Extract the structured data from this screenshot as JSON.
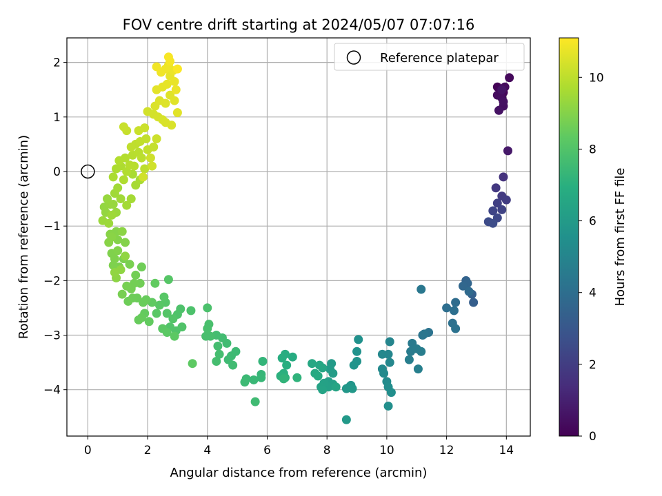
{
  "chart_data": {
    "type": "scatter",
    "title": "FOV centre drift starting at 2024/05/07 07:07:16",
    "xlabel": "Angular distance from reference (arcmin)",
    "ylabel": "Rotation from reference (arcmin)",
    "xlim": [
      -0.7,
      14.8
    ],
    "ylim": [
      -4.85,
      2.45
    ],
    "xticks": [
      0,
      2,
      4,
      6,
      8,
      10,
      12,
      14
    ],
    "yticks": [
      -4,
      -3,
      -2,
      -1,
      0,
      1,
      2
    ],
    "grid": true,
    "legend": {
      "placement": "top-right",
      "entries": [
        "Reference platepar"
      ]
    },
    "reference_point": {
      "x": 0,
      "y": 0
    },
    "colorbar": {
      "label": "Hours from first FF file",
      "min": 0,
      "max": 11.1,
      "ticks": [
        0,
        2,
        4,
        6,
        8,
        10
      ],
      "colormap": "viridis"
    },
    "series": [
      {
        "color_by": "hours",
        "points": [
          [
            13.7,
            1.55,
            0.1
          ],
          [
            13.9,
            1.45,
            0.15
          ],
          [
            13.8,
            1.5,
            0.2
          ],
          [
            14.1,
            1.72,
            0.25
          ],
          [
            13.95,
            1.55,
            0.3
          ],
          [
            13.7,
            1.4,
            0.35
          ],
          [
            13.85,
            1.35,
            0.4
          ],
          [
            13.9,
            1.2,
            0.45
          ],
          [
            13.9,
            1.28,
            0.5
          ],
          [
            13.75,
            1.12,
            0.55
          ],
          [
            13.85,
            1.5,
            0.6
          ],
          [
            14.05,
            0.38,
            0.75
          ],
          [
            13.9,
            -0.1,
            1.6
          ],
          [
            13.65,
            -0.3,
            1.8
          ],
          [
            13.85,
            -0.45,
            1.9
          ],
          [
            14.0,
            -0.52,
            2.0
          ],
          [
            13.7,
            -0.58,
            2.1
          ],
          [
            13.85,
            -0.7,
            2.2
          ],
          [
            13.55,
            -0.72,
            2.3
          ],
          [
            13.7,
            -0.85,
            2.4
          ],
          [
            13.4,
            -0.92,
            2.5
          ],
          [
            13.55,
            -0.95,
            2.6
          ],
          [
            12.9,
            -2.4,
            3.3
          ],
          [
            12.85,
            -2.25,
            3.4
          ],
          [
            12.65,
            -2.0,
            3.5
          ],
          [
            12.7,
            -2.05,
            3.6
          ],
          [
            12.55,
            -2.1,
            3.7
          ],
          [
            12.75,
            -2.2,
            3.8
          ],
          [
            12.3,
            -2.4,
            3.9
          ],
          [
            12.0,
            -2.5,
            4.0
          ],
          [
            12.25,
            -2.55,
            4.05
          ],
          [
            12.2,
            -2.78,
            4.1
          ],
          [
            12.3,
            -2.88,
            4.15
          ],
          [
            11.4,
            -2.95,
            4.2
          ],
          [
            11.2,
            -3.0,
            4.3
          ],
          [
            11.25,
            -2.98,
            4.35
          ],
          [
            11.15,
            -2.16,
            4.4
          ],
          [
            10.85,
            -3.15,
            4.5
          ],
          [
            10.8,
            -3.3,
            4.55
          ],
          [
            11.0,
            -3.25,
            4.6
          ],
          [
            11.15,
            -3.3,
            4.65
          ],
          [
            10.75,
            -3.45,
            4.7
          ],
          [
            11.05,
            -3.62,
            4.75
          ],
          [
            10.1,
            -3.12,
            5.0
          ],
          [
            10.05,
            -3.35,
            5.05
          ],
          [
            10.1,
            -3.5,
            5.1
          ],
          [
            9.85,
            -3.35,
            5.15
          ],
          [
            9.85,
            -3.62,
            5.2
          ],
          [
            9.9,
            -3.7,
            5.25
          ],
          [
            10.0,
            -3.85,
            5.3
          ],
          [
            10.05,
            -3.95,
            5.35
          ],
          [
            10.15,
            -4.05,
            5.4
          ],
          [
            10.05,
            -4.3,
            5.45
          ],
          [
            9.05,
            -3.08,
            5.55
          ],
          [
            9.0,
            -3.3,
            5.6
          ],
          [
            9.0,
            -3.48,
            5.65
          ],
          [
            8.9,
            -3.55,
            5.7
          ],
          [
            8.8,
            -3.92,
            5.75
          ],
          [
            8.75,
            -3.95,
            5.8
          ],
          [
            8.65,
            -3.98,
            5.85
          ],
          [
            8.85,
            -3.98,
            5.9
          ],
          [
            8.65,
            -4.55,
            5.95
          ],
          [
            8.15,
            -3.52,
            6.0
          ],
          [
            8.1,
            -3.62,
            6.05
          ],
          [
            8.2,
            -3.7,
            6.1
          ],
          [
            8.05,
            -3.85,
            6.15
          ],
          [
            8.2,
            -3.9,
            6.2
          ],
          [
            8.05,
            -3.95,
            6.25
          ],
          [
            7.9,
            -3.88,
            6.3
          ],
          [
            7.8,
            -3.95,
            6.35
          ],
          [
            7.85,
            -4.0,
            6.4
          ],
          [
            8.3,
            -3.95,
            6.45
          ],
          [
            7.85,
            -3.6,
            6.5
          ],
          [
            7.75,
            -3.55,
            6.55
          ],
          [
            7.5,
            -3.52,
            6.6
          ],
          [
            7.6,
            -3.7,
            6.65
          ],
          [
            7.7,
            -3.75,
            6.7
          ],
          [
            6.85,
            -3.4,
            6.8
          ],
          [
            6.6,
            -3.35,
            6.85
          ],
          [
            6.5,
            -3.42,
            6.9
          ],
          [
            6.65,
            -3.55,
            6.95
          ],
          [
            6.55,
            -3.7,
            7.0
          ],
          [
            6.45,
            -3.75,
            7.05
          ],
          [
            6.6,
            -3.78,
            7.1
          ],
          [
            7.0,
            -3.78,
            7.15
          ],
          [
            6.55,
            -3.8,
            7.2
          ],
          [
            5.85,
            -3.48,
            7.25
          ],
          [
            5.8,
            -3.72,
            7.3
          ],
          [
            5.8,
            -3.78,
            7.35
          ],
          [
            5.55,
            -3.82,
            7.4
          ],
          [
            5.3,
            -3.8,
            7.45
          ],
          [
            5.25,
            -3.86,
            7.5
          ],
          [
            5.6,
            -4.22,
            7.55
          ],
          [
            4.95,
            -3.3,
            7.5
          ],
          [
            4.8,
            -3.38,
            7.52
          ],
          [
            4.7,
            -3.45,
            7.55
          ],
          [
            4.85,
            -3.55,
            7.58
          ],
          [
            4.65,
            -3.15,
            7.6
          ],
          [
            4.5,
            -3.05,
            7.62
          ],
          [
            4.3,
            -3.0,
            7.65
          ],
          [
            4.35,
            -3.2,
            7.68
          ],
          [
            4.4,
            -3.35,
            7.7
          ],
          [
            4.3,
            -3.48,
            7.72
          ],
          [
            4.1,
            -3.02,
            7.75
          ],
          [
            3.95,
            -3.02,
            7.78
          ],
          [
            4.0,
            -2.88,
            7.8
          ],
          [
            4.05,
            -2.8,
            7.82
          ],
          [
            4.0,
            -2.5,
            7.85
          ],
          [
            3.45,
            -2.55,
            7.9
          ],
          [
            3.1,
            -2.52,
            7.92
          ],
          [
            3.0,
            -2.62,
            7.95
          ],
          [
            3.15,
            -2.85,
            7.98
          ],
          [
            2.95,
            -2.92,
            8.0
          ],
          [
            2.75,
            -2.85,
            8.02
          ],
          [
            2.85,
            -2.7,
            8.05
          ],
          [
            2.65,
            -2.6,
            8.08
          ],
          [
            2.6,
            -2.4,
            8.1
          ],
          [
            2.7,
            -1.98,
            8.12
          ],
          [
            2.55,
            -2.3,
            8.15
          ],
          [
            2.4,
            -2.45,
            8.18
          ],
          [
            2.3,
            -2.6,
            8.2
          ],
          [
            2.5,
            -2.88,
            8.22
          ],
          [
            2.65,
            -2.95,
            8.25
          ],
          [
            2.9,
            -3.02,
            8.28
          ],
          [
            3.5,
            -3.52,
            8.3
          ],
          [
            2.15,
            -2.4,
            8.35
          ],
          [
            2.25,
            -2.05,
            8.38
          ],
          [
            2.05,
            -2.75,
            8.4
          ],
          [
            1.9,
            -2.6,
            8.42
          ],
          [
            1.8,
            -2.68,
            8.45
          ],
          [
            1.7,
            -2.72,
            8.48
          ],
          [
            1.95,
            -2.35,
            8.5
          ],
          [
            1.85,
            -2.4,
            8.52
          ],
          [
            1.65,
            -2.32,
            8.55
          ],
          [
            1.5,
            -2.32,
            8.58
          ],
          [
            1.35,
            -2.38,
            8.6
          ],
          [
            1.8,
            -1.75,
            8.62
          ],
          [
            1.75,
            -2.05,
            8.65
          ],
          [
            1.6,
            -1.9,
            8.68
          ],
          [
            1.55,
            -2.05,
            8.7
          ],
          [
            1.45,
            -2.15,
            8.72
          ],
          [
            1.3,
            -2.1,
            8.75
          ],
          [
            1.15,
            -2.25,
            8.78
          ],
          [
            1.4,
            -1.7,
            8.8
          ],
          [
            1.2,
            -1.6,
            8.82
          ],
          [
            1.05,
            -1.75,
            8.85
          ],
          [
            0.85,
            -1.72,
            8.88
          ],
          [
            0.9,
            -1.6,
            8.9
          ],
          [
            0.8,
            -1.5,
            8.92
          ],
          [
            1.0,
            -1.45,
            8.95
          ],
          [
            1.25,
            -1.3,
            8.98
          ],
          [
            1.0,
            -1.25,
            9.0
          ],
          [
            0.95,
            -1.1,
            9.02
          ],
          [
            0.75,
            -1.15,
            9.05
          ],
          [
            0.7,
            -1.3,
            9.08
          ],
          [
            0.8,
            -1.2,
            9.1
          ],
          [
            1.15,
            -1.1,
            9.12
          ],
          [
            0.95,
            -1.95,
            9.15
          ],
          [
            1.1,
            -1.8,
            9.18
          ],
          [
            1.25,
            -1.55,
            9.2
          ],
          [
            0.9,
            -1.85,
            9.22
          ],
          [
            0.55,
            -0.65,
            9.25
          ],
          [
            0.6,
            -0.75,
            9.28
          ],
          [
            0.75,
            -0.6,
            9.3
          ],
          [
            0.65,
            -0.5,
            9.32
          ],
          [
            0.85,
            -0.6,
            9.35
          ],
          [
            0.95,
            -0.75,
            9.38
          ],
          [
            0.5,
            -0.9,
            9.4
          ],
          [
            0.7,
            -0.95,
            9.42
          ],
          [
            0.8,
            -0.8,
            9.45
          ],
          [
            0.9,
            -0.4,
            9.48
          ],
          [
            1.1,
            -0.5,
            9.5
          ],
          [
            1.0,
            -0.3,
            9.52
          ],
          [
            1.3,
            -0.62,
            9.55
          ],
          [
            1.45,
            -0.5,
            9.58
          ],
          [
            1.6,
            -0.25,
            9.6
          ],
          [
            1.75,
            -0.15,
            9.62
          ],
          [
            1.5,
            -0.05,
            9.65
          ],
          [
            0.85,
            -0.1,
            9.68
          ],
          [
            0.95,
            0.05,
            9.7
          ],
          [
            1.1,
            0.1,
            9.72
          ],
          [
            1.2,
            -0.15,
            9.75
          ],
          [
            1.3,
            0.0,
            9.78
          ],
          [
            1.05,
            0.2,
            9.8
          ],
          [
            1.25,
            0.25,
            9.82
          ],
          [
            1.4,
            0.12,
            9.85
          ],
          [
            1.5,
            0.3,
            9.88
          ],
          [
            1.55,
            0.1,
            9.9
          ],
          [
            1.7,
            0.35,
            9.92
          ],
          [
            1.8,
            0.25,
            9.95
          ],
          [
            1.9,
            0.05,
            9.98
          ],
          [
            1.6,
            0.5,
            10.0
          ],
          [
            1.45,
            0.45,
            10.02
          ],
          [
            1.75,
            0.55,
            10.05
          ],
          [
            1.95,
            0.6,
            10.08
          ],
          [
            2.0,
            0.4,
            10.1
          ],
          [
            2.2,
            0.45,
            10.12
          ],
          [
            1.3,
            0.75,
            10.15
          ],
          [
            1.2,
            0.82,
            10.18
          ],
          [
            1.7,
            0.75,
            10.2
          ],
          [
            1.9,
            0.8,
            10.22
          ],
          [
            2.3,
            0.6,
            10.25
          ],
          [
            2.1,
            0.25,
            10.28
          ],
          [
            2.15,
            0.1,
            10.3
          ],
          [
            1.85,
            -0.1,
            10.32
          ],
          [
            2.0,
            1.1,
            10.35
          ],
          [
            2.2,
            1.05,
            10.38
          ],
          [
            2.35,
            1.0,
            10.4
          ],
          [
            2.5,
            0.95,
            10.42
          ],
          [
            2.6,
            0.9,
            10.45
          ],
          [
            2.8,
            0.85,
            10.48
          ],
          [
            2.25,
            1.2,
            10.5
          ],
          [
            2.4,
            1.3,
            10.52
          ],
          [
            2.6,
            1.25,
            10.55
          ],
          [
            2.75,
            1.4,
            10.58
          ],
          [
            2.9,
            1.3,
            10.6
          ],
          [
            3.0,
            1.08,
            10.62
          ],
          [
            2.3,
            1.5,
            10.65
          ],
          [
            2.5,
            1.55,
            10.68
          ],
          [
            2.65,
            1.6,
            10.7
          ],
          [
            2.75,
            1.75,
            10.72
          ],
          [
            2.9,
            1.65,
            10.75
          ],
          [
            2.95,
            1.5,
            10.78
          ],
          [
            2.85,
            1.85,
            10.8
          ],
          [
            2.7,
            1.95,
            10.82
          ],
          [
            2.6,
            1.88,
            10.85
          ],
          [
            2.45,
            1.82,
            10.88
          ],
          [
            2.3,
            1.92,
            10.9
          ],
          [
            2.75,
            2.02,
            10.95
          ],
          [
            2.7,
            2.1,
            11.0
          ],
          [
            3.0,
            1.88,
            11.05
          ]
        ]
      }
    ]
  }
}
